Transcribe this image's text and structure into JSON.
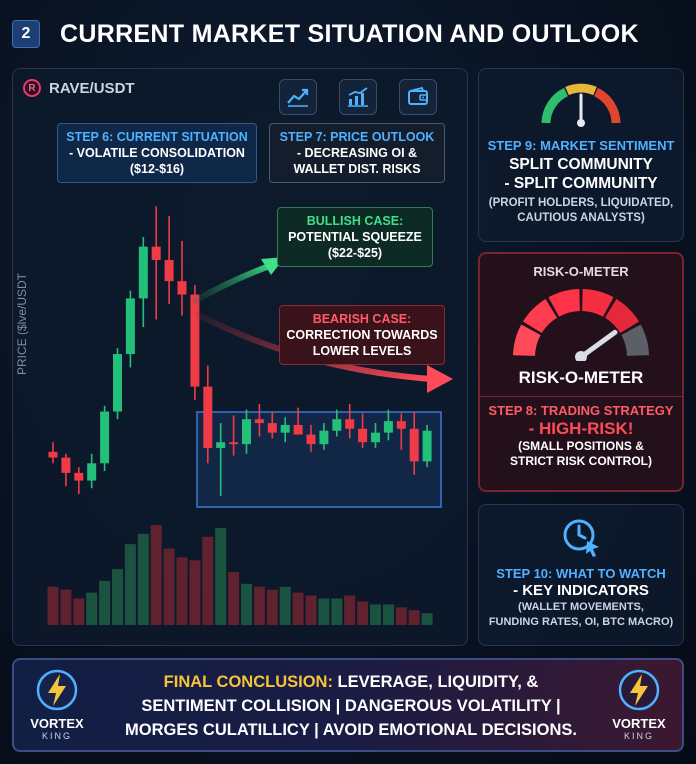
{
  "header": {
    "step_number": "2",
    "title": "CURRENT MARKET SITUATION AND OUTLOOK"
  },
  "chart_panel": {
    "pair": "RAVE/USDT",
    "pair_logo_letter": "R",
    "y_axis_label": "PRICE ($lve/USDT",
    "toolbar_icons": [
      "trend-chart-icon",
      "bar-chart-icon",
      "wallet-icon"
    ]
  },
  "callouts": {
    "step6": {
      "heading": "STEP 6: CURRENT SITUATION",
      "body": "- VOLATILE CONSOLIDATION",
      "body2": "($12-$16)"
    },
    "step7": {
      "heading": "STEP 7: PRICE OUTLOOK",
      "body": "- DECREASING OI &",
      "body2": "WALLET DIST. RISKS"
    },
    "bullish": {
      "heading": "BULLISH CASE:",
      "body": "POTENTIAL SQUEEZE",
      "body2": "($22-$25)"
    },
    "bearish": {
      "heading": "BEARISH CASE:",
      "body": "CORRECTION TOWARDS",
      "body2": "LOWER LEVELS"
    }
  },
  "sentiment": {
    "step": "STEP 9: MARKET SENTIMENT",
    "line1": "SPLIT COMMUNITY",
    "line2": "- SPLIT COMMUNITY",
    "detail1": "(PROFIT HOLDERS, LIQUIDATED,",
    "detail2": "CAUTIOUS ANALYSTS)",
    "gauge_level": 0.5
  },
  "risk": {
    "title_top": "RISK-O-METER",
    "title_main": "RISK-O-METER",
    "step": "STEP 8: TRADING STRATEGY",
    "verdict": "- HIGH-RISK!",
    "detail1": "(SMALL POSITIONS &",
    "detail2": "STRICT RISK CONTROL)",
    "risk_level": 0.8
  },
  "watch": {
    "step": "STEP 10: WHAT TO WATCH",
    "line1": "- KEY INDICATORS",
    "detail1": "(WALLET MOVEMENTS,",
    "detail2": "FUNDING RATES, OI, BTC MACRO)"
  },
  "footer": {
    "label": "FINAL CONCLUSION:",
    "line1": " LEVERAGE, LIQUIDITY, &",
    "line2": "SENTIMENT COLLISION | DANGEROUS VOLATILITY |",
    "line3": "MORGES CULATILLICY | AVOID EMOTIONAL DECISIONS.",
    "brand_name": "VORTEX",
    "brand_sub": "KING"
  },
  "colors": {
    "bull": "#22c07a",
    "bear": "#ef3b46",
    "accent_blue": "#4fb1ff",
    "gold": "#f6c43a"
  },
  "chart_data": {
    "type": "candlestick",
    "x": [
      1,
      2,
      3,
      4,
      5,
      6,
      7,
      8,
      9,
      10,
      11,
      12,
      13,
      14,
      15,
      16,
      17,
      18,
      19,
      20,
      21,
      22,
      23,
      24,
      25,
      26,
      27,
      28,
      29,
      30
    ],
    "ohlc": [
      [
        12.4,
        12.9,
        11.8,
        12.1
      ],
      [
        12.1,
        12.3,
        10.6,
        11.3
      ],
      [
        11.3,
        11.6,
        10.2,
        10.9
      ],
      [
        10.9,
        12.3,
        10.5,
        11.8
      ],
      [
        11.8,
        14.8,
        11.4,
        14.5
      ],
      [
        14.5,
        17.8,
        14.1,
        17.5
      ],
      [
        17.5,
        20.8,
        16.8,
        20.4
      ],
      [
        20.4,
        23.6,
        18.9,
        23.1
      ],
      [
        23.1,
        25.2,
        19.3,
        22.4
      ],
      [
        22.4,
        24.7,
        20.1,
        21.3
      ],
      [
        21.3,
        23.4,
        19.5,
        20.6
      ],
      [
        20.6,
        21.1,
        15.1,
        15.8
      ],
      [
        15.8,
        16.9,
        11.8,
        12.6
      ],
      [
        12.6,
        13.9,
        10.1,
        12.9
      ],
      [
        12.9,
        14.3,
        12.2,
        12.8
      ],
      [
        12.8,
        14.6,
        12.3,
        14.1
      ],
      [
        14.1,
        14.9,
        13.2,
        13.9
      ],
      [
        13.9,
        14.5,
        13.1,
        13.4
      ],
      [
        13.4,
        14.2,
        12.9,
        13.8
      ],
      [
        13.8,
        14.7,
        13.3,
        13.3
      ],
      [
        13.3,
        13.8,
        12.4,
        12.8
      ],
      [
        12.8,
        13.9,
        12.5,
        13.5
      ],
      [
        13.5,
        14.6,
        13.2,
        14.1
      ],
      [
        14.1,
        14.9,
        13.1,
        13.6
      ],
      [
        13.6,
        14.4,
        12.6,
        12.9
      ],
      [
        12.9,
        13.9,
        12.6,
        13.4
      ],
      [
        13.4,
        14.6,
        13.0,
        14.0
      ],
      [
        14.0,
        14.4,
        12.5,
        13.6
      ],
      [
        13.6,
        14.5,
        11.2,
        11.9
      ],
      [
        11.9,
        13.8,
        11.6,
        13.5
      ]
    ],
    "volume": [
      26,
      24,
      18,
      22,
      30,
      38,
      55,
      62,
      68,
      52,
      46,
      44,
      60,
      66,
      36,
      28,
      26,
      24,
      26,
      22,
      20,
      18,
      18,
      20,
      16,
      14,
      14,
      12,
      10,
      8
    ],
    "ylim": [
      9,
      26
    ],
    "consolidation_range": [
      12,
      16
    ],
    "bull_target": [
      22,
      25
    ]
  }
}
